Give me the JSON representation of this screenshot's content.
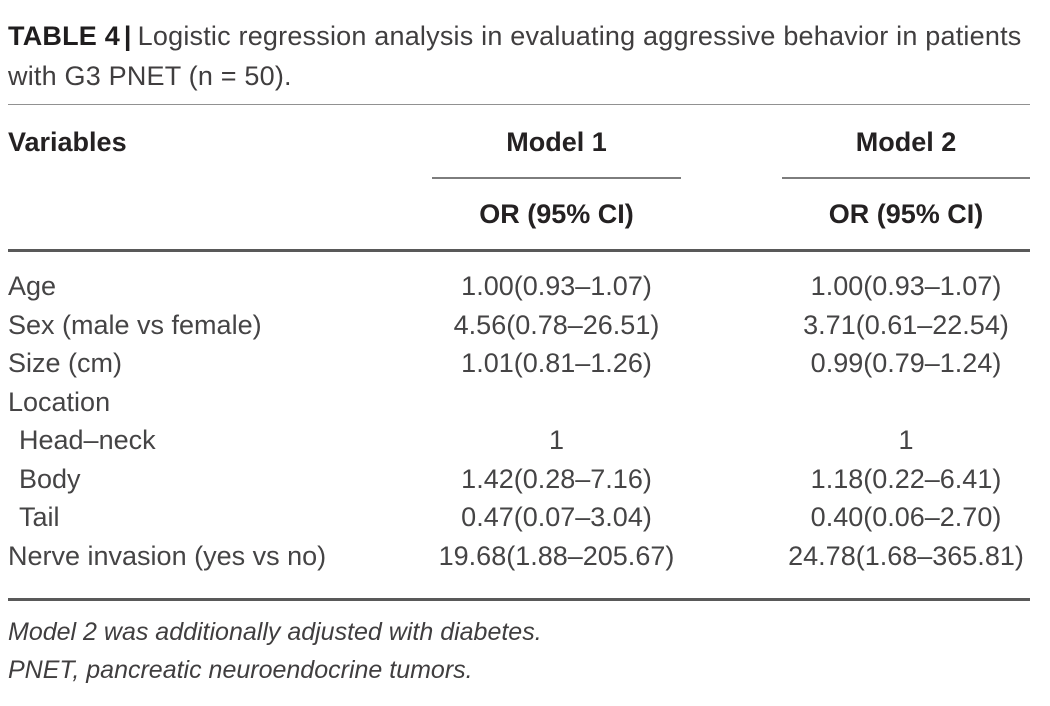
{
  "table": {
    "label": "TABLE 4",
    "separator": "|",
    "caption": "Logistic regression analysis in evaluating aggressive behavior in patients with G3 PNET (n = 50).",
    "header": {
      "variables": "Variables",
      "groups": [
        {
          "name": "Model 1",
          "subheader": "OR (95% CI)"
        },
        {
          "name": "Model 2",
          "subheader": "OR (95% CI)"
        }
      ]
    },
    "rows": [
      {
        "variable": "Age",
        "model1": "1.00(0.93–1.07)",
        "model2": "1.00(0.93–1.07)"
      },
      {
        "variable": "Sex (male vs female)",
        "model1": "4.56(0.78–26.51)",
        "model2": "3.71(0.61–22.54)"
      },
      {
        "variable": "Size (cm)",
        "model1": "1.01(0.81–1.26)",
        "model2": "0.99(0.79–1.24)"
      },
      {
        "variable": "Location",
        "model1": "",
        "model2": ""
      },
      {
        "variable": "Head–neck",
        "model1": "1",
        "model2": "1"
      },
      {
        "variable": "Body",
        "model1": "1.42(0.28–7.16)",
        "model2": "1.18(0.22–6.41)"
      },
      {
        "variable": "Tail",
        "model1": "0.47(0.07–3.04)",
        "model2": "0.40(0.06–2.70)"
      },
      {
        "variable": "Nerve invasion (yes vs no)",
        "model1": "19.68(1.88–205.67)",
        "model2": "24.78(1.68–365.81)"
      }
    ],
    "footnotes": [
      "Model 2 was additionally adjusted with diabetes.",
      "PNET, pancreatic neuroendocrine tumors."
    ],
    "colors": {
      "text_body": "#454445",
      "text_heading": "#242122",
      "rule_light": "#919191",
      "rule_heavy": "#595959"
    }
  }
}
